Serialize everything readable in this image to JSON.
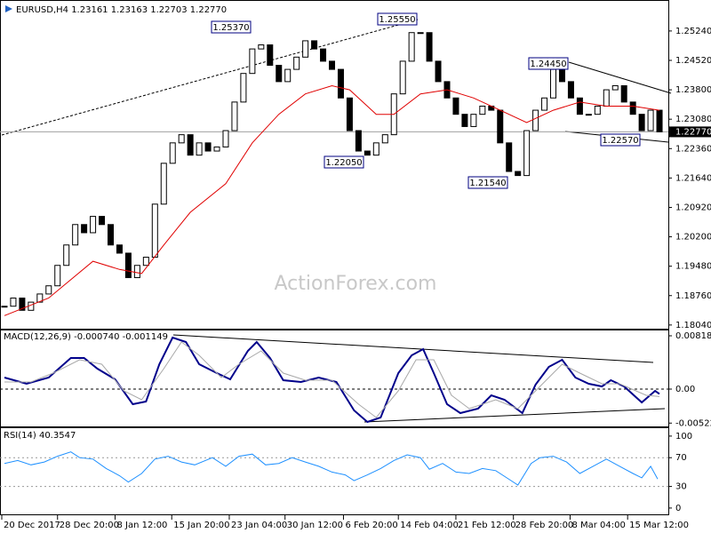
{
  "chart_data": [
    {
      "type": "candlestick",
      "title": "EURUSD,H4  1.23161 1.23163 1.22703 1.22770",
      "watermark": "ActionForex.com",
      "xlim": [
        -0.5,
        75
      ],
      "ylim": [
        1.1795,
        1.2589
      ],
      "yticks": [
        {
          "value": 1.2524,
          "label": "1.25240"
        },
        {
          "value": 1.2452,
          "label": "1.24520"
        },
        {
          "value": 1.238,
          "label": "1.23800"
        },
        {
          "value": 1.2308,
          "label": "1.23080"
        },
        {
          "value": 1.2236,
          "label": "1.22360"
        },
        {
          "value": 1.2164,
          "label": "1.21640"
        },
        {
          "value": 1.2092,
          "label": "1.20920"
        },
        {
          "value": 1.202,
          "label": "1.20200"
        },
        {
          "value": 1.1948,
          "label": "1.19480"
        },
        {
          "value": 1.1876,
          "label": "1.18760"
        },
        {
          "value": 1.1804,
          "label": "1.18040"
        }
      ],
      "last": {
        "value": 1.2277,
        "label": "1.22770"
      },
      "annotations": [
        "1.25370",
        "1.25550",
        "1.22050",
        "1.21540",
        "1.24450",
        "1.22570"
      ],
      "color": "#000000",
      "values": [
        1.185,
        1.187,
        1.184,
        1.186,
        1.188,
        1.19,
        1.195,
        1.2,
        1.205,
        1.203,
        1.207,
        1.205,
        1.2,
        1.198,
        1.192,
        1.195,
        1.197,
        1.21,
        1.22,
        1.225,
        1.227,
        1.222,
        1.225,
        1.223,
        1.224,
        1.228,
        1.235,
        1.242,
        1.248,
        1.249,
        1.244,
        1.24,
        1.243,
        1.246,
        1.25,
        1.248,
        1.245,
        1.243,
        1.236,
        1.228,
        1.223,
        1.222,
        1.225,
        1.227,
        1.237,
        1.245,
        1.252,
        1.252,
        1.245,
        1.24,
        1.236,
        1.232,
        1.229,
        1.232,
        1.234,
        1.233,
        1.225,
        1.218,
        1.217,
        1.228,
        1.233,
        1.236,
        1.243,
        1.24,
        1.236,
        1.232,
        1.232,
        1.234,
        1.238,
        1.239,
        1.235,
        1.232,
        1.228,
        1.233,
        1.2277
      ],
      "series": [
        {
          "color": "#e00000",
          "x": [
            0,
            5,
            10,
            13,
            15.5,
            18,
            21,
            25,
            28,
            31,
            34,
            37,
            39,
            42,
            44,
            47,
            50,
            53,
            56,
            59,
            62,
            65,
            68,
            71,
            74
          ],
          "values": [
            1.1827,
            1.187,
            1.196,
            1.194,
            1.193,
            1.2,
            1.208,
            1.215,
            1.225,
            1.232,
            1.237,
            1.239,
            1.238,
            1.232,
            1.232,
            1.237,
            1.238,
            1.236,
            1.233,
            1.23,
            1.233,
            1.235,
            1.234,
            1.234,
            1.233
          ]
        }
      ]
    },
    {
      "type": "line",
      "title": "MACD(12,26,9) -0.000740 -0.001149",
      "xlim": [
        -0.5,
        75
      ],
      "ylim": [
        -0.00573,
        0.009
      ],
      "yticks": [
        0.008182,
        {
          "value": 0,
          "label": "0.00"
        },
        -0.005223
      ],
      "series": [
        {
          "color": "#00008b",
          "x": [
            0,
            2.5,
            5,
            7.5,
            9,
            10.5,
            12.5,
            14.5,
            16,
            17.5,
            19,
            20.5,
            22,
            24,
            25.5,
            27.5,
            28.5,
            30,
            31.5,
            33.5,
            35.5,
            37.5,
            39.5,
            41,
            42.5,
            44.5,
            46,
            47.3,
            48.5,
            50,
            51.5,
            53.5,
            55,
            56.5,
            58.5,
            60,
            61.5,
            63,
            64.5,
            66,
            67.5,
            68.5,
            70,
            72,
            73.5,
            74
          ],
          "values": [
            0.00177,
            0.00082,
            0.00177,
            0.00477,
            0.00477,
            0.00314,
            0.0015,
            -0.00232,
            -0.00191,
            0.00382,
            0.00791,
            0.00723,
            0.00382,
            0.00245,
            0.0015,
            0.00586,
            0.00723,
            0.00477,
            0.00136,
            0.00109,
            0.00177,
            0.00109,
            -0.00327,
            -0.00505,
            -0.00436,
            0.00245,
            0.00518,
            0.00614,
            0.00245,
            -0.00232,
            -0.00368,
            -0.003,
            -0.00095,
            -0.00164,
            -0.00368,
            0.00068,
            0.00341,
            0.0045,
            0.00177,
            0.00082,
            0.00041,
            0.00136,
            0.00041,
            -0.00205,
            -0.00027,
            -0.00074
          ]
        },
        {
          "color": "#a8a8a8",
          "x": [
            0,
            3,
            5.5,
            8.5,
            11,
            13.5,
            15.5,
            18,
            20,
            22,
            24.5,
            26.5,
            29,
            31.5,
            34,
            37,
            40,
            42,
            44.5,
            46.5,
            48.5,
            50.5,
            52.5,
            55.5,
            58,
            60.5,
            63,
            65,
            67.5,
            69.5,
            72.5,
            74
          ],
          "values": [
            0.00109,
            0.00109,
            0.00245,
            0.0045,
            0.00382,
            -0.00027,
            -0.00164,
            0.00314,
            0.00723,
            0.00518,
            0.00177,
            0.00382,
            0.00586,
            0.00245,
            0.00136,
            0.00136,
            -0.00232,
            -0.00436,
            -0.00027,
            0.0045,
            0.0045,
            -0.00095,
            -0.003,
            -0.00164,
            -0.003,
            0.00041,
            0.00382,
            0.00245,
            0.00082,
            0.00082,
            -0.00095,
            -0.001149
          ]
        }
      ]
    },
    {
      "type": "line",
      "title": "RSI(14) 40.3547",
      "xlim": [
        -0.5,
        75
      ],
      "ylim": [
        -10,
        111
      ],
      "yticks": [
        100,
        70,
        30,
        0
      ],
      "levels": [
        70,
        30
      ],
      "xticks": [
        {
          "value": -0.3,
          "label": "20 Dec 2017"
        },
        {
          "value": 6,
          "label": "28 Dec 20:00"
        },
        {
          "value": 12.5,
          "label": "8 Jan 12:00"
        },
        {
          "value": 18.9,
          "label": "15 Jan 20:00"
        },
        {
          "value": 25.4,
          "label": "23 Jan 04:00"
        },
        {
          "value": 31.7,
          "label": "30 Jan 12:00"
        },
        {
          "value": 38.3,
          "label": "6 Feb 20:00"
        },
        {
          "value": 44.5,
          "label": "14 Feb 04:00"
        },
        {
          "value": 51,
          "label": "21 Feb 12:00"
        },
        {
          "value": 57.5,
          "label": "28 Feb 20:00"
        },
        {
          "value": 63.9,
          "label": "8 Mar 04:00"
        },
        {
          "value": 70.4,
          "label": "15 Mar 12:00"
        }
      ],
      "series": [
        {
          "color": "#1e90ff",
          "x": [
            0,
            1.5,
            3,
            4.5,
            6,
            7.5,
            8.5,
            10,
            11.5,
            13,
            14,
            15.5,
            17,
            18.5,
            20,
            21.5,
            23.5,
            25,
            26.5,
            28,
            29.5,
            31,
            32.5,
            34,
            35.5,
            37,
            38.5,
            39.5,
            41,
            42.5,
            44,
            45.5,
            47,
            48,
            49.5,
            51,
            52.5,
            54,
            55.5,
            57,
            58,
            59.5,
            60.5,
            62,
            63.5,
            65,
            66.5,
            68,
            69.5,
            71,
            72,
            73,
            73.8
          ],
          "values": [
            62,
            66,
            60,
            64,
            72,
            78,
            70,
            68,
            55,
            45,
            36,
            48,
            68,
            72,
            64,
            60,
            70,
            58,
            72,
            75,
            60,
            62,
            70,
            64,
            58,
            50,
            46,
            38,
            46,
            55,
            66,
            74,
            70,
            54,
            62,
            50,
            48,
            55,
            52,
            40,
            32,
            62,
            70,
            72,
            64,
            48,
            58,
            68,
            58,
            48,
            42,
            58,
            40.3547
          ]
        }
      ]
    }
  ]
}
